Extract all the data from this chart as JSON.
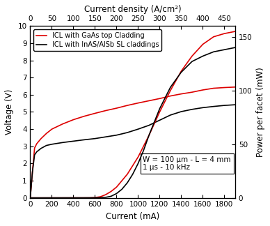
{
  "title_top": "Current density (A/cm²)",
  "xlabel": "Current (mA)",
  "ylabel_left": "Voltage (V)",
  "ylabel_right": "Power per facet (mW)",
  "xlim": [
    0,
    1900
  ],
  "ylim_left": [
    0,
    10
  ],
  "ylim_right": [
    0,
    160
  ],
  "xticks_bottom": [
    0,
    200,
    400,
    600,
    800,
    1000,
    1200,
    1400,
    1600,
    1800
  ],
  "xticks_top": [
    0,
    50,
    100,
    150,
    200,
    250,
    300,
    350,
    400,
    450
  ],
  "yticks_left": [
    0,
    1,
    2,
    3,
    4,
    5,
    6,
    7,
    8,
    9,
    10
  ],
  "yticks_right": [
    0,
    50,
    100,
    150
  ],
  "annotation": "W = 100 μm - L = 4 mm\n1 μs - 10 kHz",
  "legend": [
    "ICL with GaAs top Cladding",
    "ICL with InAS/AlSb SL claddings"
  ],
  "line_colors": [
    "#dd0000",
    "#000000"
  ],
  "current_scale_factor": 4.0,
  "red_voltage_current": [
    0,
    20,
    40,
    60,
    80,
    100,
    150,
    200,
    300,
    400,
    500,
    600,
    700,
    800,
    900,
    1000,
    1100,
    1200,
    1300,
    1400,
    1500,
    1600,
    1700,
    1800,
    1900
  ],
  "red_voltage_values": [
    0.0,
    1.5,
    2.9,
    3.15,
    3.3,
    3.45,
    3.75,
    4.0,
    4.3,
    4.55,
    4.75,
    4.92,
    5.08,
    5.22,
    5.38,
    5.52,
    5.65,
    5.78,
    5.93,
    6.05,
    6.15,
    6.28,
    6.38,
    6.42,
    6.45
  ],
  "black_voltage_current": [
    0,
    20,
    40,
    60,
    80,
    100,
    150,
    200,
    300,
    400,
    500,
    600,
    700,
    800,
    900,
    1000,
    1100,
    1200,
    1300,
    1400,
    1500,
    1600,
    1700,
    1800,
    1900
  ],
  "black_voltage_values": [
    0.0,
    1.5,
    2.5,
    2.68,
    2.78,
    2.88,
    3.05,
    3.12,
    3.22,
    3.3,
    3.38,
    3.45,
    3.55,
    3.65,
    3.8,
    4.0,
    4.22,
    4.52,
    4.82,
    5.02,
    5.15,
    5.25,
    5.32,
    5.38,
    5.42
  ],
  "red_power_current": [
    0,
    50,
    100,
    150,
    200,
    300,
    400,
    500,
    550,
    600,
    650,
    700,
    750,
    800,
    850,
    900,
    950,
    1000,
    1050,
    1100,
    1200,
    1300,
    1400,
    1500,
    1600,
    1700,
    1800,
    1900
  ],
  "red_power_values": [
    0,
    0.0,
    0.0,
    0.0,
    0.0,
    0.02,
    0.04,
    0.06,
    0.1,
    0.3,
    1.0,
    3.0,
    6.0,
    10.0,
    16.0,
    22.0,
    30.0,
    38.0,
    48.0,
    58.0,
    80.0,
    100.0,
    118.0,
    132.0,
    143.0,
    150.0,
    153.0,
    155.0
  ],
  "black_power_current": [
    0,
    50,
    100,
    200,
    300,
    400,
    500,
    600,
    650,
    700,
    750,
    800,
    850,
    900,
    950,
    1000,
    1050,
    1100,
    1200,
    1300,
    1400,
    1500,
    1600,
    1700,
    1800,
    1900
  ],
  "black_power_values": [
    0,
    0.0,
    0.0,
    0.02,
    0.03,
    0.04,
    0.05,
    0.08,
    0.15,
    0.5,
    1.5,
    4.0,
    8.0,
    14.0,
    22.0,
    32.0,
    44.0,
    58.0,
    83.0,
    103.0,
    117.0,
    127.0,
    132.0,
    136.0,
    138.0,
    140.0
  ]
}
